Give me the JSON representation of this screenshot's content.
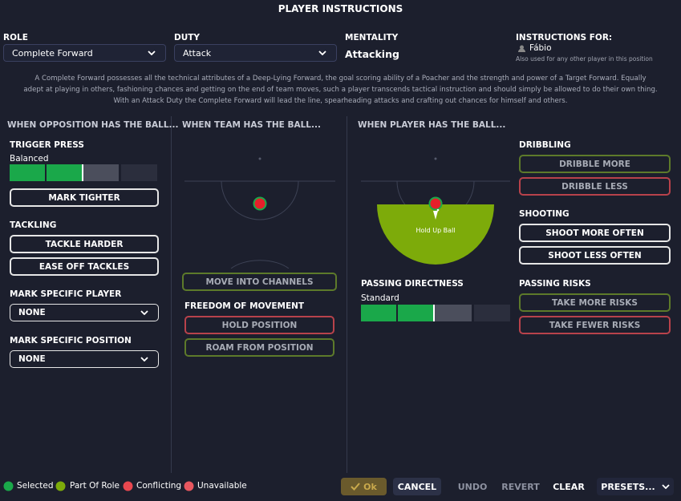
{
  "header": {
    "title": "PLAYER INSTRUCTIONS"
  },
  "role": {
    "label": "ROLE",
    "value": "Complete Forward"
  },
  "duty": {
    "label": "DUTY",
    "value": "Attack"
  },
  "mentality": {
    "label": "MENTALITY",
    "value": "Attacking"
  },
  "instructions_for": {
    "label": "INSTRUCTIONS FOR:",
    "player": "Fábio",
    "note": "Also used for any other player in this position"
  },
  "description": [
    "A Complete Forward possesses all the technical attributes of a Deep-Lying Forward, the goal scoring ability of a Poacher and the strength and power of a Target Forward. Equally",
    "adept at playing in others, fashioning chances and getting on the end of team moves, such a player transcends tactical instruction and should simply be allowed to do their own thing.",
    "With an Attack Duty the Complete Forward will lead the line, spearheading attacks and crafting out chances for himself and others."
  ],
  "opposition": {
    "title": "WHEN OPPOSITION HAS THE BALL...",
    "trigger_press": {
      "label": "TRIGGER PRESS",
      "setting": "Balanced"
    },
    "mark_tighter": "MARK TIGHTER",
    "tackling": {
      "label": "TACKLING",
      "options": [
        "TACKLE HARDER",
        "EASE OFF TACKLES"
      ]
    },
    "mark_player": {
      "label": "MARK SPECIFIC PLAYER",
      "value": "NONE"
    },
    "mark_position": {
      "label": "MARK SPECIFIC POSITION",
      "value": "NONE"
    }
  },
  "team": {
    "title": "WHEN TEAM HAS THE BALL...",
    "move_into_channels": "MOVE INTO CHANNELS",
    "freedom": {
      "label": "FREEDOM OF MOVEMENT",
      "options": [
        "HOLD POSITION",
        "ROAM FROM POSITION"
      ]
    }
  },
  "player": {
    "title": "WHEN PLAYER HAS THE BALL...",
    "pitch_label": "Hold Up Ball",
    "passing": {
      "label": "PASSING DIRECTNESS",
      "setting": "Standard"
    },
    "dribbling": {
      "label": "DRIBBLING",
      "options": [
        "DRIBBLE MORE",
        "DRIBBLE LESS"
      ]
    },
    "shooting": {
      "label": "SHOOTING",
      "options": [
        "SHOOT MORE OFTEN",
        "SHOOT LESS OFTEN"
      ]
    },
    "passing_risks": {
      "label": "PASSING RISKS",
      "options": [
        "TAKE MORE RISKS",
        "TAKE FEWER RISKS"
      ]
    }
  },
  "legend": [
    "Selected",
    "Part Of Role",
    "Conflicting",
    "Unavailable"
  ],
  "footer": {
    "buttons": [
      "Ok",
      "CANCEL",
      "UNDO",
      "REVERT",
      "CLEAR",
      "PRESETS..."
    ]
  }
}
